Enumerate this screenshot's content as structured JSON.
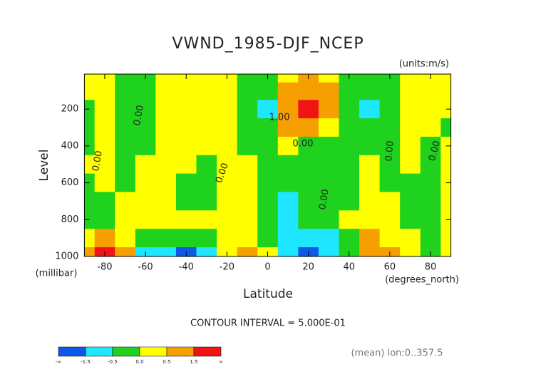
{
  "chart_data": {
    "type": "contour",
    "title": "VWND_1985-DJF_NCEP",
    "units": "(units:m/s)",
    "ylabel": "Level",
    "yunits": "(millibar)",
    "xlabel": "Latitude",
    "xunits": "(degrees_north)",
    "contour_interval": "CONTOUR INTERVAL = 5.000E-01",
    "note": "(mean) lon:0..357.5",
    "xlim": [
      -90,
      90
    ],
    "ylim": [
      1000,
      10
    ],
    "xticks": [
      -80,
      -60,
      -40,
      -20,
      0,
      20,
      40,
      60,
      80
    ],
    "yticks": [
      200,
      400,
      600,
      800,
      1000
    ],
    "lats": [
      -90,
      -80,
      -70,
      -60,
      -50,
      -40,
      -30,
      -20,
      -10,
      0,
      10,
      20,
      30,
      40,
      50,
      60,
      70,
      80,
      90
    ],
    "levels": [
      10,
      100,
      200,
      300,
      400,
      500,
      600,
      700,
      800,
      900,
      1000
    ],
    "values": [
      [
        0.2,
        0.2,
        -0.2,
        -0.1,
        0.3,
        0.3,
        0.3,
        0.3,
        -0.1,
        -0.2,
        0.3,
        0.6,
        0.3,
        -0.1,
        -0.2,
        -0.1,
        0.2,
        0.2,
        0.2
      ],
      [
        0.2,
        0.1,
        -0.2,
        -0.2,
        0.3,
        0.3,
        0.3,
        0.2,
        -0.2,
        -0.3,
        0.7,
        1.0,
        0.7,
        -0.2,
        -0.2,
        -0.1,
        0.2,
        0.2,
        0.2
      ],
      [
        -0.1,
        0.1,
        -0.2,
        -0.2,
        0.3,
        0.3,
        0.3,
        0.2,
        -0.2,
        -0.6,
        1.2,
        1.8,
        1.2,
        -0.2,
        -0.6,
        -0.2,
        0.3,
        0.3,
        0.1
      ],
      [
        -0.2,
        0.2,
        -0.2,
        -0.2,
        0.2,
        0.3,
        0.3,
        0.2,
        -0.2,
        -0.2,
        0.5,
        0.8,
        0.3,
        -0.2,
        -0.2,
        -0.2,
        0.2,
        0.2,
        -0.2
      ],
      [
        -0.2,
        0.1,
        -0.2,
        -0.1,
        0.2,
        0.3,
        0.2,
        0.1,
        -0.2,
        -0.2,
        0.1,
        -0.2,
        -0.2,
        -0.2,
        -0.2,
        -0.2,
        0.2,
        -0.2,
        0.1
      ],
      [
        0.1,
        0.2,
        -0.2,
        0.1,
        0.2,
        0.2,
        -0.2,
        0.2,
        0.2,
        -0.2,
        -0.2,
        -0.2,
        -0.2,
        -0.2,
        0.2,
        -0.2,
        0.2,
        -0.2,
        0.2
      ],
      [
        -0.2,
        0.2,
        -0.2,
        0.2,
        0.2,
        -0.2,
        -0.2,
        0.2,
        0.2,
        -0.2,
        -0.2,
        -0.2,
        -0.2,
        -0.2,
        0.2,
        -0.2,
        -0.2,
        -0.2,
        0.2
      ],
      [
        -0.2,
        -0.2,
        0.2,
        0.2,
        0.2,
        -0.2,
        -0.2,
        0.2,
        0.2,
        -0.2,
        -0.6,
        -0.2,
        -0.2,
        -0.2,
        0.2,
        0.2,
        -0.2,
        -0.2,
        0.2
      ],
      [
        -0.2,
        -0.2,
        0.2,
        0.2,
        0.2,
        0.2,
        0.2,
        0.2,
        0.2,
        -0.2,
        -0.7,
        -0.3,
        -0.2,
        0.2,
        0.2,
        0.2,
        -0.2,
        -0.2,
        0.2
      ],
      [
        0.2,
        0.6,
        0.3,
        -0.2,
        -0.2,
        -0.2,
        -0.2,
        0.2,
        0.2,
        -0.2,
        -0.8,
        -1.0,
        -0.6,
        -0.2,
        0.6,
        0.2,
        0.2,
        -0.2,
        0.2
      ],
      [
        0.8,
        2.0,
        0.6,
        -0.6,
        -1.0,
        -1.8,
        -1.0,
        0.2,
        0.7,
        0.2,
        -1.0,
        -2.0,
        -1.2,
        -0.2,
        0.7,
        0.7,
        0.2,
        -0.2,
        0.2
      ]
    ],
    "bounds": [
      -1.5,
      -0.5,
      0,
      0.5,
      1.5
    ],
    "colors": [
      "#0a5ae6",
      "#1ee6ff",
      "#1ed21e",
      "#ffff00",
      "#f5a000",
      "#f01414"
    ],
    "colorbar_labels": [
      "-∞",
      "-1.5",
      "-0.5",
      "0.0",
      "0.5",
      "1.5",
      "∞"
    ],
    "contour_labels": [
      "0.00",
      "0.00",
      "1.00",
      "0.00",
      "0.00",
      "0.00",
      "0.00",
      "0.00"
    ]
  }
}
